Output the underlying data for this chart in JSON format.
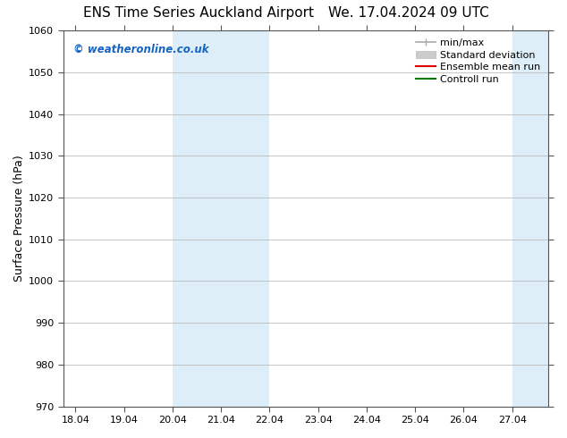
{
  "title_left": "ENS Time Series Auckland Airport",
  "title_right": "We. 17.04.2024 09 UTC",
  "ylabel": "Surface Pressure (hPa)",
  "ylim": [
    970,
    1060
  ],
  "yticks": [
    970,
    980,
    990,
    1000,
    1010,
    1020,
    1030,
    1040,
    1050,
    1060
  ],
  "xlim_min": 17.75,
  "xlim_max": 27.75,
  "xtick_positions": [
    18.0,
    19.0,
    20.0,
    21.0,
    22.0,
    23.0,
    24.0,
    25.0,
    26.0,
    27.0
  ],
  "xtick_labels": [
    "18.04",
    "19.04",
    "20.04",
    "21.04",
    "22.04",
    "23.04",
    "24.04",
    "25.04",
    "26.04",
    "27.04"
  ],
  "shaded_regions": [
    {
      "xstart": 20.0,
      "xend": 22.0,
      "color": "#ddeef8"
    },
    {
      "xstart": 27.0,
      "xend": 27.75,
      "color": "#ddeef8"
    }
  ],
  "watermark": "© weatheronline.co.uk",
  "watermark_color": "#1565c0",
  "background_color": "#ffffff",
  "plot_bg_color": "#ffffff",
  "grid_color": "#bbbbbb",
  "legend_items": [
    {
      "label": "min/max",
      "color": "#aaaaaa",
      "lw": 1.2
    },
    {
      "label": "Standard deviation",
      "color": "#cccccc",
      "lw": 6
    },
    {
      "label": "Ensemble mean run",
      "color": "#dd0000",
      "lw": 1.5
    },
    {
      "label": "Controll run",
      "color": "#007700",
      "lw": 1.5
    }
  ],
  "title_fontsize": 11,
  "ylabel_fontsize": 9,
  "tick_fontsize": 8,
  "legend_fontsize": 8
}
